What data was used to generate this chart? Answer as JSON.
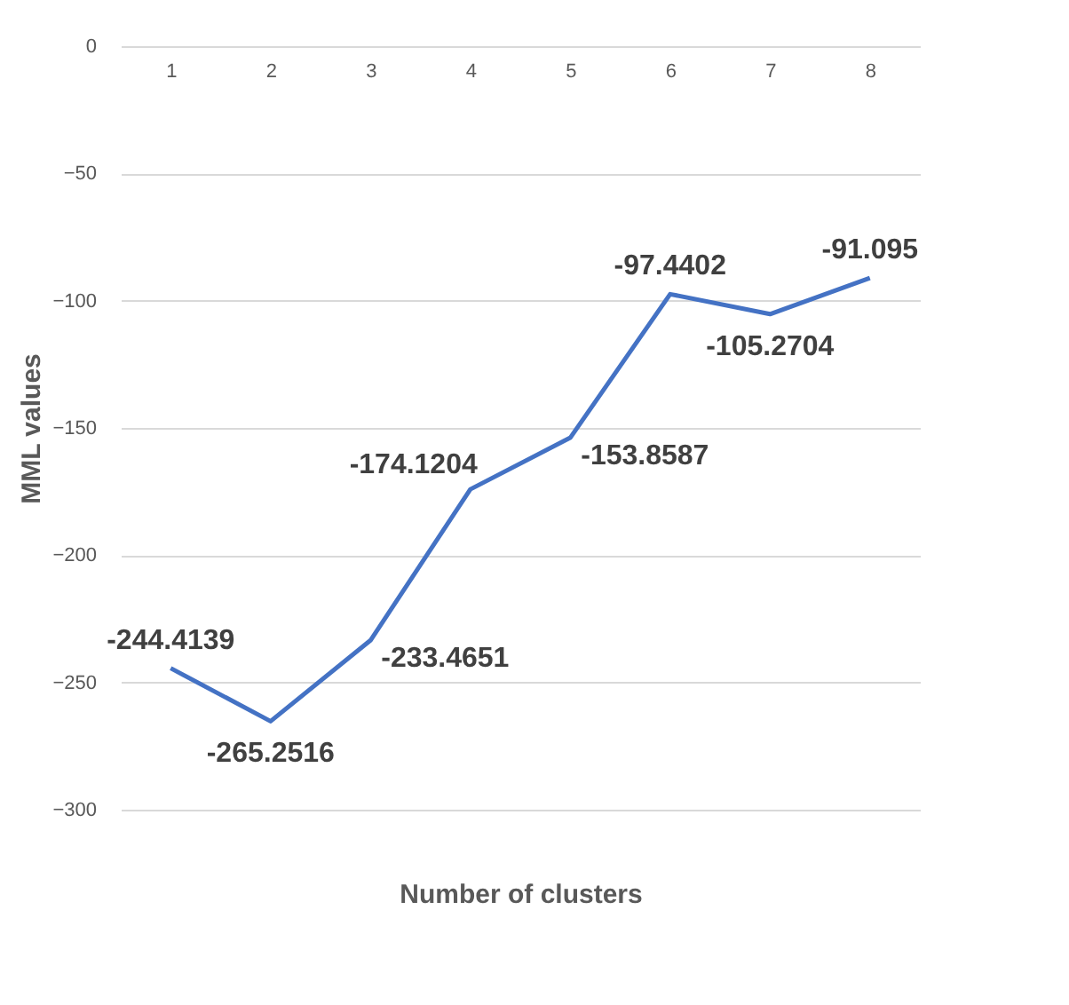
{
  "chart_data": {
    "type": "line",
    "xlabel": "Number of clusters",
    "ylabel": "MML values",
    "categories": [
      "1",
      "2",
      "3",
      "4",
      "5",
      "6",
      "7",
      "8"
    ],
    "series": [
      {
        "color": "#4472c4",
        "values": [
          -244.4139,
          -265.2516,
          -233.4651,
          -174.1204,
          -153.8587,
          -97.4402,
          -105.2704,
          -91.095
        ]
      }
    ],
    "ylim": [
      -300,
      0
    ],
    "yticks": [
      0,
      -50,
      -100,
      -150,
      -200,
      -250,
      -300
    ],
    "grid": "y",
    "data_labels": true,
    "marker": "none",
    "line_style": "solid"
  }
}
